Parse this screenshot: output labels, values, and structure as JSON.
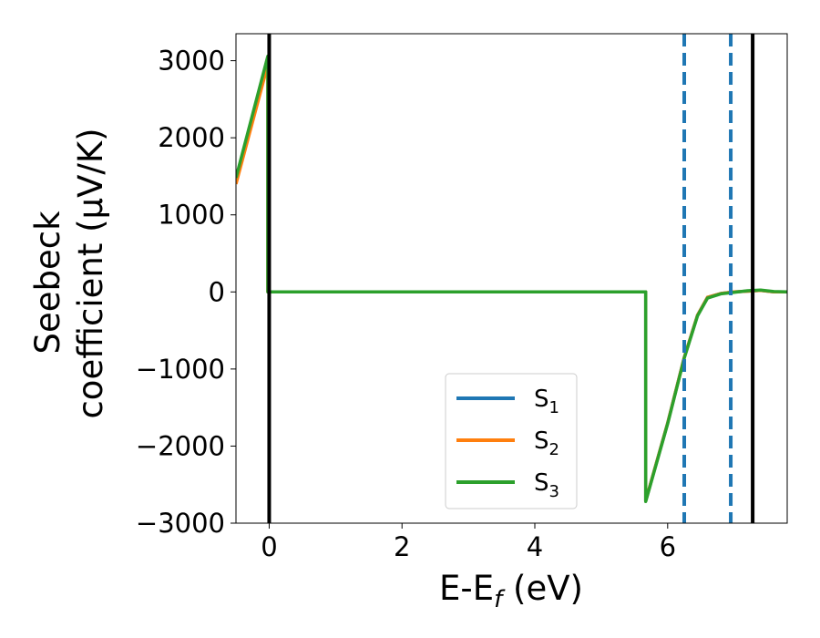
{
  "chart_data": {
    "type": "line",
    "xlabel_main": "E-E",
    "xlabel_sub": "f",
    "xlabel_unit": " (eV)",
    "ylabel_line1": "Seebeck",
    "ylabel_line2": "coefficient  (μV/K)",
    "xlim": [
      -0.5,
      7.8
    ],
    "ylim": [
      -3000,
      3350
    ],
    "xticks": [
      0,
      2,
      4,
      6
    ],
    "xtick_labels": [
      "0",
      "2",
      "4",
      "6"
    ],
    "yticks": [
      -3000,
      -2000,
      -1000,
      0,
      1000,
      2000,
      3000
    ],
    "ytick_labels": [
      "−3000",
      "−2000",
      "−1000",
      "0",
      "1000",
      "2000",
      "3000"
    ],
    "legend_position": "lower-center",
    "series": [
      {
        "name": "S",
        "sub": "1",
        "color": "#1f77b4",
        "x": [
          -0.5,
          -0.02,
          -0.02,
          5.67,
          5.67,
          6.0,
          6.25,
          6.45,
          6.6,
          6.8,
          7.0,
          7.2,
          7.4,
          7.6,
          7.8
        ],
        "y": [
          1450,
          3050,
          0,
          0,
          -2710,
          -1700,
          -850,
          -300,
          -70,
          -20,
          0,
          10,
          20,
          0,
          0
        ]
      },
      {
        "name": "S",
        "sub": "2",
        "color": "#ff7f0e",
        "x": [
          -0.5,
          -0.02,
          -0.02,
          5.67,
          5.67,
          6.0,
          6.25,
          6.45,
          6.6,
          6.8,
          7.0,
          7.2,
          7.4,
          7.6,
          7.8
        ],
        "y": [
          1400,
          2950,
          0,
          0,
          -2710,
          -1700,
          -850,
          -300,
          -70,
          -20,
          0,
          10,
          20,
          0,
          0
        ]
      },
      {
        "name": "S",
        "sub": "3",
        "color": "#2ca02c",
        "x": [
          -0.5,
          -0.02,
          -0.02,
          5.67,
          5.67,
          6.0,
          6.25,
          6.45,
          6.6,
          6.8,
          7.0,
          7.2,
          7.4,
          7.6,
          7.8
        ],
        "y": [
          1480,
          3060,
          0,
          0,
          -2720,
          -1710,
          -860,
          -310,
          -80,
          -25,
          -5,
          15,
          25,
          5,
          0
        ]
      }
    ],
    "vlines_solid": [
      0.0,
      7.28
    ],
    "vlines_dashed": [
      6.25,
      6.95
    ],
    "vline_solid_color": "#000000",
    "vline_dashed_color": "#1f77b4"
  }
}
